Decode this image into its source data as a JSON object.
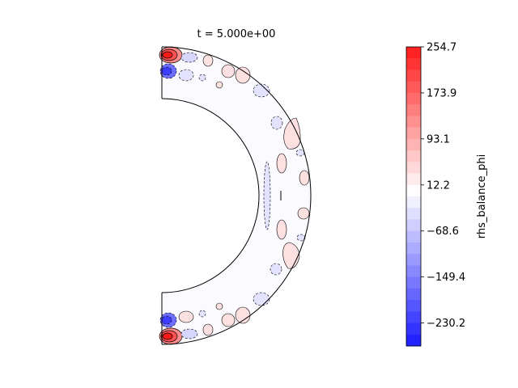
{
  "chart_data": {
    "type": "heatmap",
    "title": "t = 5.000e+00",
    "geometry": "meridional half-annulus (spherical shell)",
    "colormap": "bwr",
    "colors": {
      "min": "#1a1aff",
      "mid": "#ffffff",
      "max": "#ff1a1a",
      "outline": "#000000"
    },
    "colorbar": {
      "label": "rhs_balance_phi",
      "min": -270.6,
      "max": 254.7,
      "levels": 26,
      "ticks": [
        {
          "value": 254.7,
          "label": "254.7"
        },
        {
          "value": 173.9,
          "label": "173.9"
        },
        {
          "value": 93.1,
          "label": "93.1"
        },
        {
          "value": 12.2,
          "label": "12.2"
        },
        {
          "value": -68.6,
          "label": "−68.6"
        },
        {
          "value": -149.4,
          "label": "−149.4"
        },
        {
          "value": -230.2,
          "label": "−230.2"
        }
      ]
    },
    "features": [
      {
        "sign": "positive",
        "strength": 1.0,
        "region": "north-pole inner boundary"
      },
      {
        "sign": "negative",
        "strength": 0.45,
        "region": "north-pole inner boundary"
      },
      {
        "sign": "positive",
        "strength": 1.0,
        "region": "south-pole inner boundary"
      },
      {
        "sign": "negative",
        "strength": 0.45,
        "region": "south-pole inner boundary"
      },
      {
        "sign": "positive",
        "strength": 0.12,
        "region": "outer boundary, mid-latitudes"
      },
      {
        "sign": "negative",
        "strength": 0.12,
        "region": "outer boundary and interior, mid-latitudes"
      }
    ]
  }
}
